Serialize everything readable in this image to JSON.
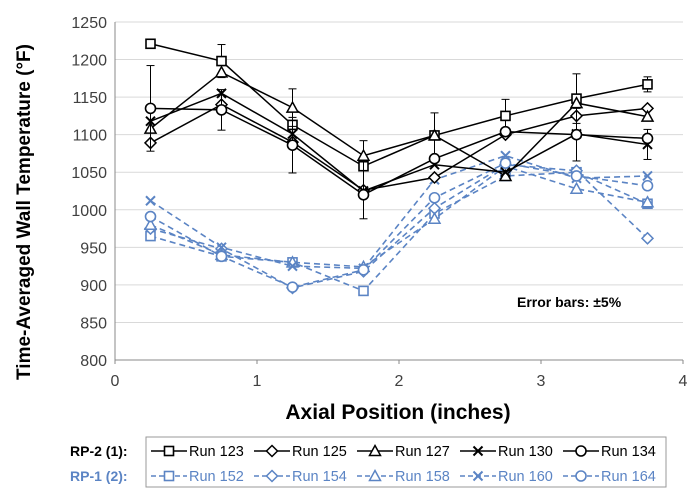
{
  "chart_data": {
    "type": "line",
    "title": "",
    "xlabel": "Axial Position (inches)",
    "ylabel": "Time-Averaged Wall Temperature (°F)",
    "xlim": [
      0,
      4
    ],
    "ylim": [
      800,
      1250
    ],
    "x_ticks": [
      "0",
      "1",
      "2",
      "3",
      "4"
    ],
    "y_ticks": [
      "800",
      "850",
      "900",
      "950",
      "1000",
      "1050",
      "1100",
      "1150",
      "1200",
      "1250"
    ],
    "grid": "horizontal",
    "annotation": "Error bars: ±5%",
    "x": [
      0.25,
      0.75,
      1.25,
      1.75,
      2.25,
      2.75,
      3.25,
      3.75
    ],
    "legend_groups": [
      {
        "label": "RP-2 (1):",
        "color": "#000000"
      },
      {
        "label": "RP-1 (2):",
        "color": "#5b84c4"
      }
    ],
    "series": [
      {
        "name": "Run 123",
        "group": 0,
        "marker": "square",
        "values": [
          1221,
          1198,
          1113,
          1058,
          1099,
          1125,
          1148,
          1167
        ],
        "error": [
          null,
          22,
          null,
          null,
          30,
          22,
          33,
          10
        ]
      },
      {
        "name": "Run 125",
        "group": 0,
        "marker": "diamond",
        "values": [
          1089,
          1140,
          1090,
          1026,
          1043,
          1100,
          1125,
          1135
        ]
      },
      {
        "name": "Run 127",
        "group": 0,
        "marker": "triangle",
        "values": [
          1108,
          1183,
          1136,
          1072,
          1099,
          1045,
          1142,
          1124
        ],
        "error": [
          null,
          null,
          25,
          20,
          null,
          null,
          null,
          null
        ]
      },
      {
        "name": "Run 130",
        "group": 0,
        "marker": "x",
        "values": [
          1118,
          1155,
          1101,
          1025,
          1060,
          1050,
          1101,
          1087
        ],
        "error": [
          null,
          null,
          null,
          null,
          null,
          null,
          null,
          20
        ]
      },
      {
        "name": "Run 134",
        "group": 0,
        "marker": "circle",
        "values": [
          1135,
          1133,
          1086,
          1020,
          1068,
          1104,
          1100,
          1095
        ],
        "error": [
          57,
          27,
          37,
          32,
          null,
          null,
          35,
          null
        ]
      },
      {
        "name": "Run 152",
        "group": 1,
        "marker": "square",
        "values": [
          965,
          938,
          930,
          892,
          995,
          1045,
          1050,
          1008
        ]
      },
      {
        "name": "Run 154",
        "group": 1,
        "marker": "diamond",
        "values": [
          975,
          948,
          896,
          918,
          1002,
          1060,
          1052,
          962
        ]
      },
      {
        "name": "Run 158",
        "group": 1,
        "marker": "triangle",
        "values": [
          980,
          940,
          930,
          924,
          988,
          1058,
          1028,
          1010
        ]
      },
      {
        "name": "Run 160",
        "group": 1,
        "marker": "x",
        "values": [
          1012,
          950,
          925,
          922,
          1040,
          1072,
          1042,
          1045
        ]
      },
      {
        "name": "Run 164",
        "group": 1,
        "marker": "circle",
        "values": [
          991,
          938,
          897,
          920,
          1016,
          1062,
          1045,
          1032
        ]
      }
    ]
  }
}
